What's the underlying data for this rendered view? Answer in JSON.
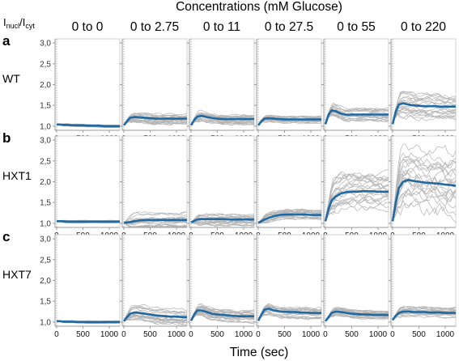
{
  "chart_data": {
    "type": "line",
    "title": "Concentrations (mM Glucose)",
    "xlabel": "Time (sec)",
    "ylabel": "Inucl/Icyt",
    "ylabel_main": "I",
    "ylabel_sub1": "nucl",
    "ylabel_sep": "/I",
    "ylabel_sub2": "cyt",
    "ylim": [
      0.9,
      3.1
    ],
    "xlim": [
      -30,
      1200
    ],
    "grid": false,
    "yticks": [
      "1,0",
      "1,5",
      "2,0",
      "2,5",
      "3,0"
    ],
    "xticks": [
      "0",
      "500",
      "1000"
    ],
    "columns": [
      "0 to 0",
      "0 to 2.75",
      "0 to 11",
      "0 to 27.5",
      "0 to 55",
      "0 to 220"
    ],
    "rows": [
      {
        "panel": "a",
        "strain": "WT"
      },
      {
        "panel": "b",
        "strain": "HXT1"
      },
      {
        "panel": "c",
        "strain": "HXT7"
      }
    ],
    "mean_color": "#2068a0",
    "trace_color": "#b3b3b3",
    "mean_x": [
      0,
      60,
      120,
      200,
      300,
      400,
      500,
      600,
      700,
      800,
      900,
      1000,
      1100,
      1200
    ],
    "mean_series": [
      [
        {
          "name": "",
          "values": [
            1.04,
            1.04,
            1.03,
            1.03,
            1.02,
            1.02,
            1.02,
            1.01,
            1.01,
            1.01,
            1.0,
            1.0,
            1.0,
            1.0
          ]
        },
        {
          "name": "",
          "values": [
            1.02,
            1.12,
            1.2,
            1.22,
            1.21,
            1.2,
            1.19,
            1.18,
            1.18,
            1.18,
            1.18,
            1.18,
            1.18,
            1.18
          ]
        },
        {
          "name": "",
          "values": [
            1.02,
            1.15,
            1.23,
            1.25,
            1.22,
            1.2,
            1.18,
            1.17,
            1.17,
            1.17,
            1.17,
            1.17,
            1.17,
            1.17
          ]
        },
        {
          "name": "",
          "values": [
            1.02,
            1.12,
            1.18,
            1.19,
            1.18,
            1.17,
            1.16,
            1.16,
            1.16,
            1.16,
            1.16,
            1.16,
            1.16,
            1.16
          ]
        },
        {
          "name": "",
          "values": [
            1.05,
            1.28,
            1.38,
            1.36,
            1.3,
            1.27,
            1.28,
            1.28,
            1.28,
            1.28,
            1.28,
            1.28,
            1.28,
            1.28
          ]
        },
        {
          "name": "",
          "values": [
            1.05,
            1.35,
            1.52,
            1.55,
            1.52,
            1.5,
            1.49,
            1.48,
            1.48,
            1.48,
            1.47,
            1.47,
            1.47,
            1.47
          ]
        }
      ],
      [
        {
          "name": "",
          "values": [
            1.05,
            1.05,
            1.05,
            1.04,
            1.04,
            1.04,
            1.04,
            1.04,
            1.04,
            1.04,
            1.04,
            1.04,
            1.04,
            1.04
          ]
        },
        {
          "name": "",
          "values": [
            1.01,
            1.02,
            1.03,
            1.05,
            1.07,
            1.08,
            1.08,
            1.08,
            1.08,
            1.08,
            1.08,
            1.08,
            1.08,
            1.08
          ]
        },
        {
          "name": "",
          "values": [
            1.02,
            1.06,
            1.09,
            1.1,
            1.1,
            1.1,
            1.1,
            1.1,
            1.09,
            1.09,
            1.09,
            1.09,
            1.09,
            1.09
          ]
        },
        {
          "name": "",
          "values": [
            1.01,
            1.05,
            1.09,
            1.13,
            1.17,
            1.2,
            1.21,
            1.21,
            1.21,
            1.21,
            1.21,
            1.2,
            1.2,
            1.2
          ]
        },
        {
          "name": "",
          "values": [
            1.05,
            1.35,
            1.55,
            1.65,
            1.72,
            1.75,
            1.76,
            1.76,
            1.77,
            1.77,
            1.77,
            1.76,
            1.76,
            1.76
          ]
        },
        {
          "name": "",
          "values": [
            1.05,
            1.5,
            1.85,
            2.0,
            2.04,
            2.02,
            2.0,
            1.98,
            1.97,
            1.96,
            1.95,
            1.93,
            1.92,
            1.9
          ]
        }
      ],
      [
        {
          "name": "",
          "values": [
            1.02,
            1.02,
            1.01,
            1.01,
            1.01,
            1.0,
            1.0,
            1.0,
            1.0,
            1.0,
            1.0,
            1.0,
            1.0,
            1.0
          ]
        },
        {
          "name": "",
          "values": [
            1.02,
            1.12,
            1.2,
            1.23,
            1.22,
            1.2,
            1.18,
            1.16,
            1.15,
            1.14,
            1.13,
            1.13,
            1.12,
            1.12
          ]
        },
        {
          "name": "",
          "values": [
            1.03,
            1.18,
            1.28,
            1.28,
            1.24,
            1.2,
            1.18,
            1.17,
            1.16,
            1.15,
            1.14,
            1.14,
            1.14,
            1.14
          ]
        },
        {
          "name": "",
          "values": [
            1.03,
            1.18,
            1.3,
            1.32,
            1.28,
            1.26,
            1.25,
            1.24,
            1.24,
            1.23,
            1.23,
            1.22,
            1.22,
            1.22
          ]
        },
        {
          "name": "",
          "values": [
            1.02,
            1.12,
            1.22,
            1.25,
            1.24,
            1.22,
            1.2,
            1.19,
            1.18,
            1.18,
            1.17,
            1.17,
            1.17,
            1.17
          ]
        },
        {
          "name": "",
          "values": [
            1.05,
            1.15,
            1.22,
            1.25,
            1.25,
            1.24,
            1.24,
            1.24,
            1.23,
            1.23,
            1.23,
            1.22,
            1.22,
            1.22
          ]
        }
      ]
    ],
    "trace_spread": [
      [
        0.03,
        0.12,
        0.12,
        0.08,
        0.15,
        0.3
      ],
      [
        0.03,
        0.18,
        0.15,
        0.12,
        0.45,
        0.75
      ],
      [
        0.03,
        0.18,
        0.15,
        0.15,
        0.1,
        0.12
      ]
    ]
  }
}
